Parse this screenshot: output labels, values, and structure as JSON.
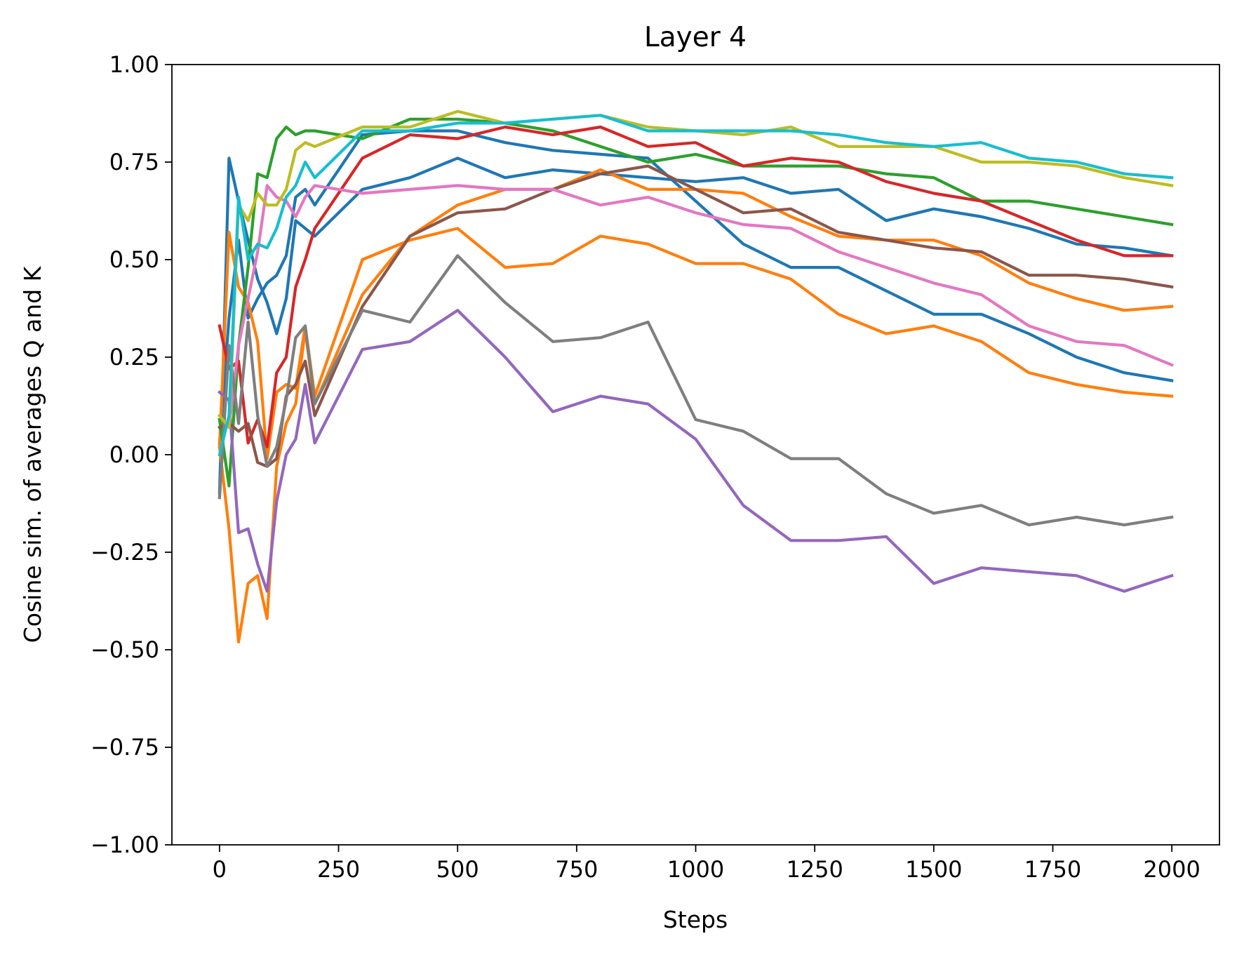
{
  "chart_data": {
    "type": "line",
    "title": "Layer 4",
    "xlabel": "Steps",
    "ylabel": "Cosine sim. of averages Q and K",
    "xlim": [
      -100,
      2100
    ],
    "ylim": [
      -1.0,
      1.0
    ],
    "xticks": [
      0,
      250,
      500,
      750,
      1000,
      1250,
      1500,
      1750,
      2000
    ],
    "xtick_labels": [
      "0",
      "250",
      "500",
      "750",
      "1000",
      "1250",
      "1500",
      "1750",
      "2000"
    ],
    "yticks": [
      -1.0,
      -0.75,
      -0.5,
      -0.25,
      0.0,
      0.25,
      0.5,
      0.75,
      1.0
    ],
    "ytick_labels": [
      "−1.00",
      "−0.75",
      "−0.50",
      "−0.25",
      "0.00",
      "0.25",
      "0.50",
      "0.75",
      "1.00"
    ],
    "grid": false,
    "legend": "none",
    "x": [
      0,
      20,
      40,
      60,
      80,
      100,
      120,
      140,
      160,
      180,
      200,
      300,
      400,
      500,
      600,
      700,
      800,
      900,
      1000,
      1100,
      1200,
      1300,
      1400,
      1500,
      1600,
      1700,
      1800,
      1900,
      2000
    ],
    "series": [
      {
        "color": "#1f77b4",
        "values": [
          -0.1,
          0.76,
          0.65,
          0.55,
          0.45,
          0.39,
          0.31,
          0.4,
          0.6,
          0.58,
          0.56,
          0.68,
          0.71,
          0.76,
          0.71,
          0.73,
          0.72,
          0.71,
          0.7,
          0.71,
          0.67,
          0.68,
          0.6,
          0.63,
          0.61,
          0.58,
          0.54,
          0.53,
          0.51
        ]
      },
      {
        "color": "#1f77b4",
        "values": [
          0.03,
          0.35,
          0.55,
          0.35,
          0.4,
          0.44,
          0.46,
          0.51,
          0.66,
          0.68,
          0.64,
          0.82,
          0.83,
          0.83,
          0.8,
          0.78,
          0.77,
          0.76,
          0.65,
          0.54,
          0.48,
          0.48,
          0.42,
          0.36,
          0.36,
          0.31,
          0.25,
          0.21,
          0.19
        ]
      },
      {
        "color": "#ff7f0e",
        "values": [
          0.02,
          0.57,
          0.43,
          0.39,
          0.29,
          -0.01,
          0.16,
          0.18,
          0.17,
          0.33,
          0.15,
          0.5,
          0.55,
          0.58,
          0.48,
          0.49,
          0.56,
          0.54,
          0.49,
          0.49,
          0.45,
          0.36,
          0.31,
          0.33,
          0.29,
          0.21,
          0.18,
          0.16,
          0.15
        ]
      },
      {
        "color": "#ff7f0e",
        "values": [
          0.02,
          -0.19,
          -0.48,
          -0.33,
          -0.31,
          -0.42,
          -0.03,
          0.08,
          0.13,
          0.32,
          0.13,
          0.41,
          0.56,
          0.64,
          0.68,
          0.68,
          0.73,
          0.68,
          0.68,
          0.67,
          0.61,
          0.56,
          0.55,
          0.55,
          0.51,
          0.44,
          0.4,
          0.37,
          0.38
        ]
      },
      {
        "color": "#2ca02c",
        "values": [
          0.09,
          -0.08,
          0.28,
          0.48,
          0.72,
          0.71,
          0.81,
          0.84,
          0.82,
          0.83,
          0.83,
          0.81,
          0.86,
          0.86,
          0.85,
          0.83,
          0.79,
          0.75,
          0.77,
          0.74,
          0.74,
          0.74,
          0.72,
          0.71,
          0.65,
          0.65,
          0.63,
          0.61,
          0.59
        ]
      },
      {
        "color": "#d62728",
        "values": [
          0.33,
          0.22,
          0.24,
          0.03,
          0.09,
          0.02,
          0.21,
          0.25,
          0.43,
          0.5,
          0.58,
          0.76,
          0.82,
          0.81,
          0.84,
          0.82,
          0.84,
          0.79,
          0.8,
          0.74,
          0.76,
          0.75,
          0.7,
          0.67,
          0.65,
          0.6,
          0.55,
          0.51,
          0.51
        ]
      },
      {
        "color": "#9467bd",
        "values": [
          0.16,
          0.14,
          -0.2,
          -0.19,
          -0.28,
          -0.35,
          -0.12,
          0.0,
          0.04,
          0.18,
          0.03,
          0.27,
          0.29,
          0.37,
          0.25,
          0.11,
          0.15,
          0.13,
          0.04,
          -0.13,
          -0.22,
          -0.22,
          -0.21,
          -0.33,
          -0.29,
          -0.3,
          -0.31,
          -0.35,
          -0.31
        ]
      },
      {
        "color": "#8c564b",
        "values": [
          0.07,
          0.08,
          0.06,
          0.08,
          -0.02,
          -0.03,
          -0.01,
          0.15,
          0.18,
          0.24,
          0.1,
          0.38,
          0.56,
          0.62,
          0.63,
          0.68,
          0.72,
          0.74,
          0.68,
          0.62,
          0.63,
          0.57,
          0.55,
          0.53,
          0.52,
          0.46,
          0.46,
          0.45,
          0.43
        ]
      },
      {
        "color": "#e377c2",
        "values": [
          0.1,
          0.07,
          0.28,
          0.4,
          0.52,
          0.69,
          0.66,
          0.65,
          0.61,
          0.66,
          0.69,
          0.67,
          0.68,
          0.69,
          0.68,
          0.68,
          0.64,
          0.66,
          0.62,
          0.59,
          0.58,
          0.52,
          0.48,
          0.44,
          0.41,
          0.33,
          0.29,
          0.28,
          0.23
        ]
      },
      {
        "color": "#7f7f7f",
        "values": [
          -0.11,
          0.28,
          0.08,
          0.34,
          0.1,
          -0.03,
          0.02,
          0.14,
          0.3,
          0.33,
          0.13,
          0.37,
          0.34,
          0.51,
          0.39,
          0.29,
          0.3,
          0.34,
          0.09,
          0.06,
          -0.01,
          -0.01,
          -0.1,
          -0.15,
          -0.13,
          -0.18,
          -0.16,
          -0.18,
          -0.16
        ]
      },
      {
        "color": "#bcbd22",
        "values": [
          0.1,
          0.07,
          0.64,
          0.6,
          0.67,
          0.64,
          0.64,
          0.68,
          0.78,
          0.8,
          0.79,
          0.84,
          0.84,
          0.88,
          0.85,
          0.86,
          0.87,
          0.84,
          0.83,
          0.82,
          0.84,
          0.79,
          0.79,
          0.79,
          0.75,
          0.75,
          0.74,
          0.71,
          0.69
        ]
      },
      {
        "color": "#17becf",
        "values": [
          0.0,
          0.1,
          0.66,
          0.5,
          0.54,
          0.53,
          0.58,
          0.66,
          0.69,
          0.75,
          0.71,
          0.83,
          0.83,
          0.85,
          0.85,
          0.86,
          0.87,
          0.83,
          0.83,
          0.83,
          0.83,
          0.82,
          0.8,
          0.79,
          0.8,
          0.76,
          0.75,
          0.72,
          0.71
        ]
      }
    ]
  }
}
